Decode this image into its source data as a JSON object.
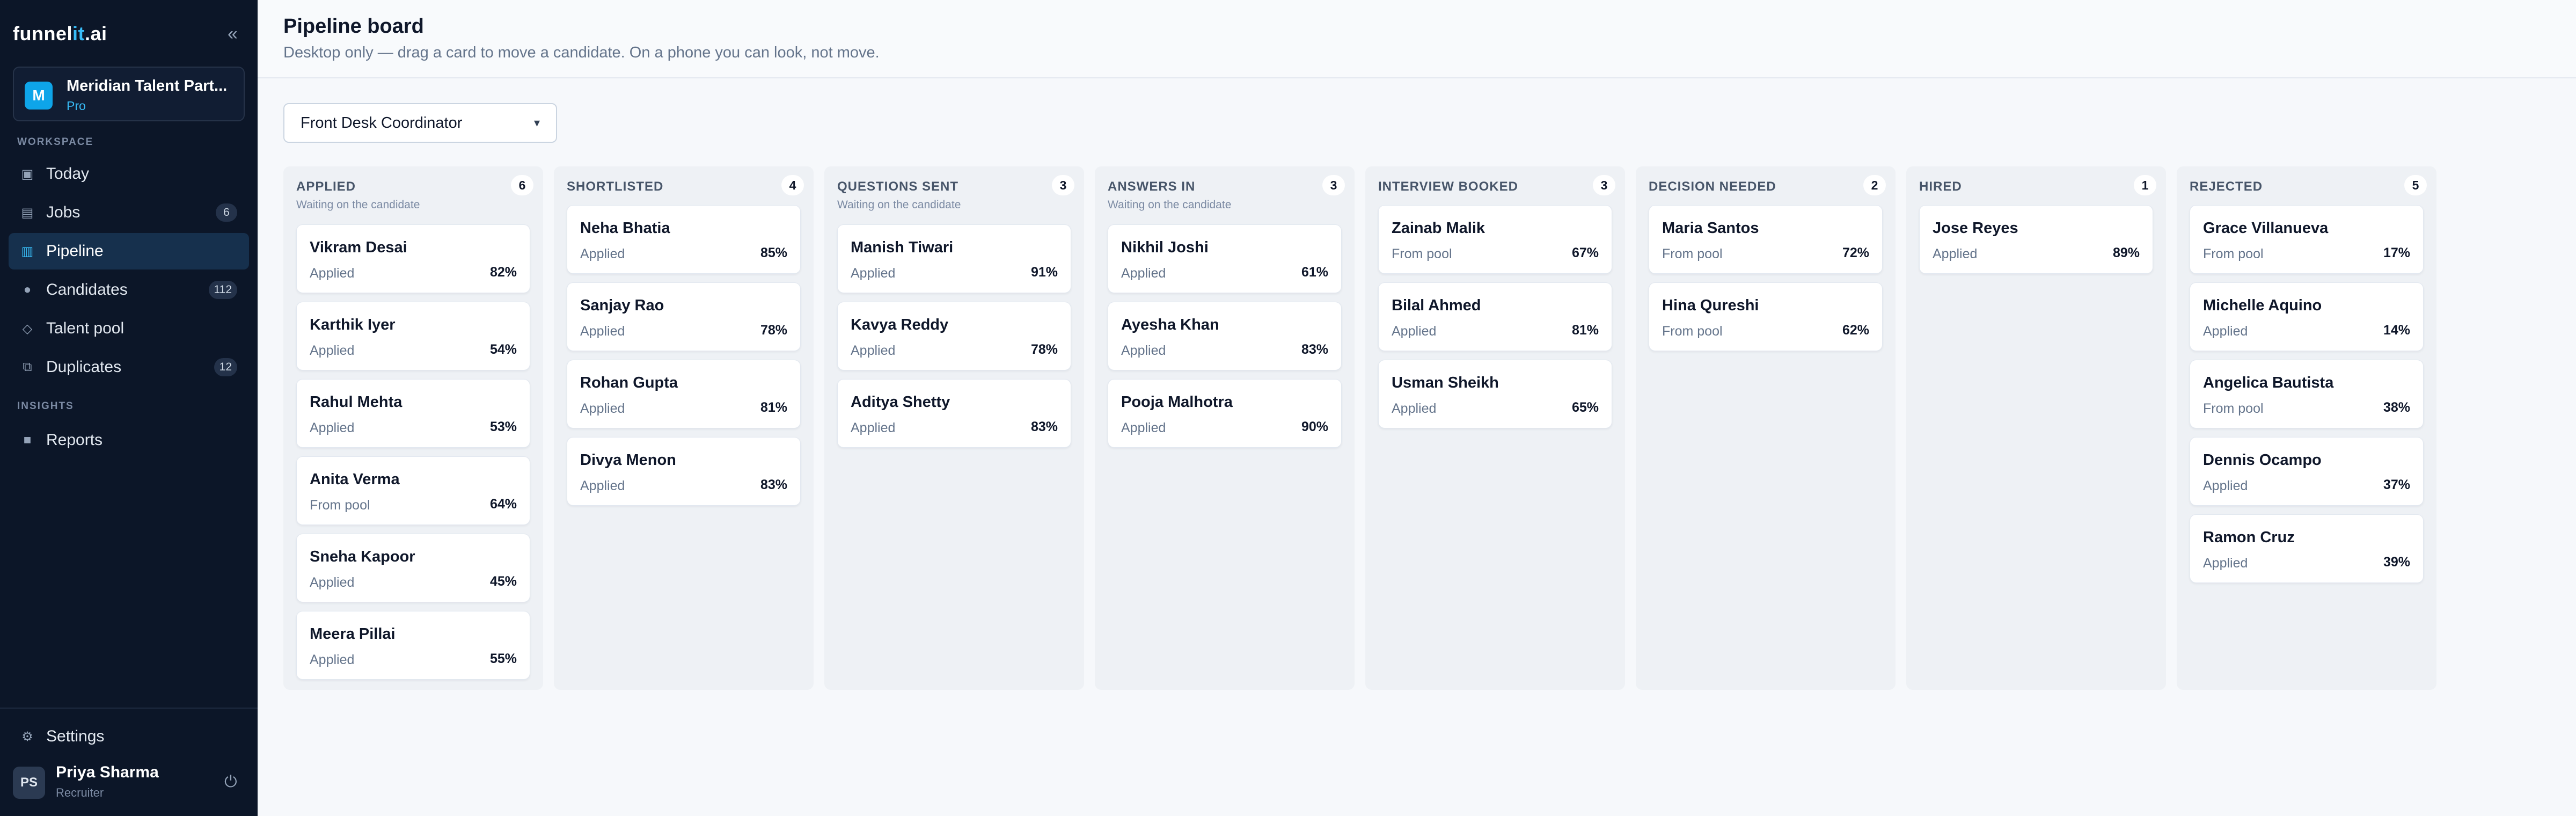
{
  "sidebar": {
    "logo_pre": "funnel",
    "logo_hl": "it",
    "logo_post": ".ai",
    "collapse_glyph": "«",
    "org": {
      "initial": "M",
      "name": "Meridian Talent Part...",
      "plan": "Pro"
    },
    "sections": {
      "workspace": "WORKSPACE",
      "insights": "INSIGHTS"
    },
    "items": [
      {
        "label": "Today",
        "icon": "calendar-icon",
        "glyph": "▣"
      },
      {
        "label": "Jobs",
        "icon": "briefcase-icon",
        "glyph": "▤",
        "badge": "6"
      },
      {
        "label": "Pipeline",
        "icon": "columns-icon",
        "glyph": "▥"
      },
      {
        "label": "Candidates",
        "icon": "person-icon",
        "glyph": "●",
        "badge": "112"
      },
      {
        "label": "Talent pool",
        "icon": "diamond-icon",
        "glyph": "◇"
      },
      {
        "label": "Duplicates",
        "icon": "copy-icon",
        "glyph": "⧉",
        "badge": "12"
      },
      {
        "label": "Reports",
        "icon": "chart-icon",
        "glyph": "■"
      }
    ],
    "settings": {
      "label": "Settings",
      "icon": "gear-icon",
      "glyph": "⚙"
    },
    "user": {
      "initials": "PS",
      "name": "Priya Sharma",
      "role": "Recruiter"
    },
    "power_glyph": "⏻"
  },
  "header": {
    "title": "Pipeline board",
    "subtitle": "Desktop only — drag a card to move a candidate. On a phone you can look, not move."
  },
  "job_select": {
    "value": "Front Desk Coordinator"
  },
  "columns": [
    {
      "title": "APPLIED",
      "count": "6",
      "sub": "Waiting on the candidate",
      "cards": [
        {
          "name": "Vikram Desai",
          "source": "Applied",
          "score": "82%"
        },
        {
          "name": "Karthik Iyer",
          "source": "Applied",
          "score": "54%"
        },
        {
          "name": "Rahul Mehta",
          "source": "Applied",
          "score": "53%"
        },
        {
          "name": "Anita Verma",
          "source": "From pool",
          "score": "64%"
        },
        {
          "name": "Sneha Kapoor",
          "source": "Applied",
          "score": "45%"
        },
        {
          "name": "Meera Pillai",
          "source": "Applied",
          "score": "55%"
        }
      ]
    },
    {
      "title": "SHORTLISTED",
      "count": "4",
      "sub": "",
      "cards": [
        {
          "name": "Neha Bhatia",
          "source": "Applied",
          "score": "85%"
        },
        {
          "name": "Sanjay Rao",
          "source": "Applied",
          "score": "78%"
        },
        {
          "name": "Rohan Gupta",
          "source": "Applied",
          "score": "81%"
        },
        {
          "name": "Divya Menon",
          "source": "Applied",
          "score": "83%"
        }
      ]
    },
    {
      "title": "QUESTIONS SENT",
      "count": "3",
      "sub": "Waiting on the candidate",
      "cards": [
        {
          "name": "Manish Tiwari",
          "source": "Applied",
          "score": "91%"
        },
        {
          "name": "Kavya Reddy",
          "source": "Applied",
          "score": "78%"
        },
        {
          "name": "Aditya Shetty",
          "source": "Applied",
          "score": "83%"
        }
      ]
    },
    {
      "title": "ANSWERS IN",
      "count": "3",
      "sub": "Waiting on the candidate",
      "cards": [
        {
          "name": "Nikhil Joshi",
          "source": "Applied",
          "score": "61%"
        },
        {
          "name": "Ayesha Khan",
          "source": "Applied",
          "score": "83%"
        },
        {
          "name": "Pooja Malhotra",
          "source": "Applied",
          "score": "90%"
        }
      ]
    },
    {
      "title": "INTERVIEW BOOKED",
      "count": "3",
      "sub": "",
      "cards": [
        {
          "name": "Zainab Malik",
          "source": "From pool",
          "score": "67%"
        },
        {
          "name": "Bilal Ahmed",
          "source": "Applied",
          "score": "81%"
        },
        {
          "name": "Usman Sheikh",
          "source": "Applied",
          "score": "65%"
        }
      ]
    },
    {
      "title": "DECISION NEEDED",
      "count": "2",
      "sub": "",
      "cards": [
        {
          "name": "Maria Santos",
          "source": "From pool",
          "score": "72%"
        },
        {
          "name": "Hina Qureshi",
          "source": "From pool",
          "score": "62%"
        }
      ]
    },
    {
      "title": "HIRED",
      "count": "1",
      "sub": "",
      "cards": [
        {
          "name": "Jose Reyes",
          "source": "Applied",
          "score": "89%"
        }
      ]
    },
    {
      "title": "REJECTED",
      "count": "5",
      "sub": "",
      "cards": [
        {
          "name": "Grace Villanueva",
          "source": "From pool",
          "score": "17%"
        },
        {
          "name": "Michelle Aquino",
          "source": "Applied",
          "score": "14%"
        },
        {
          "name": "Angelica Bautista",
          "source": "From pool",
          "score": "38%"
        },
        {
          "name": "Dennis Ocampo",
          "source": "Applied",
          "score": "37%"
        },
        {
          "name": "Ramon Cruz",
          "source": "Applied",
          "score": "39%"
        }
      ]
    }
  ]
}
